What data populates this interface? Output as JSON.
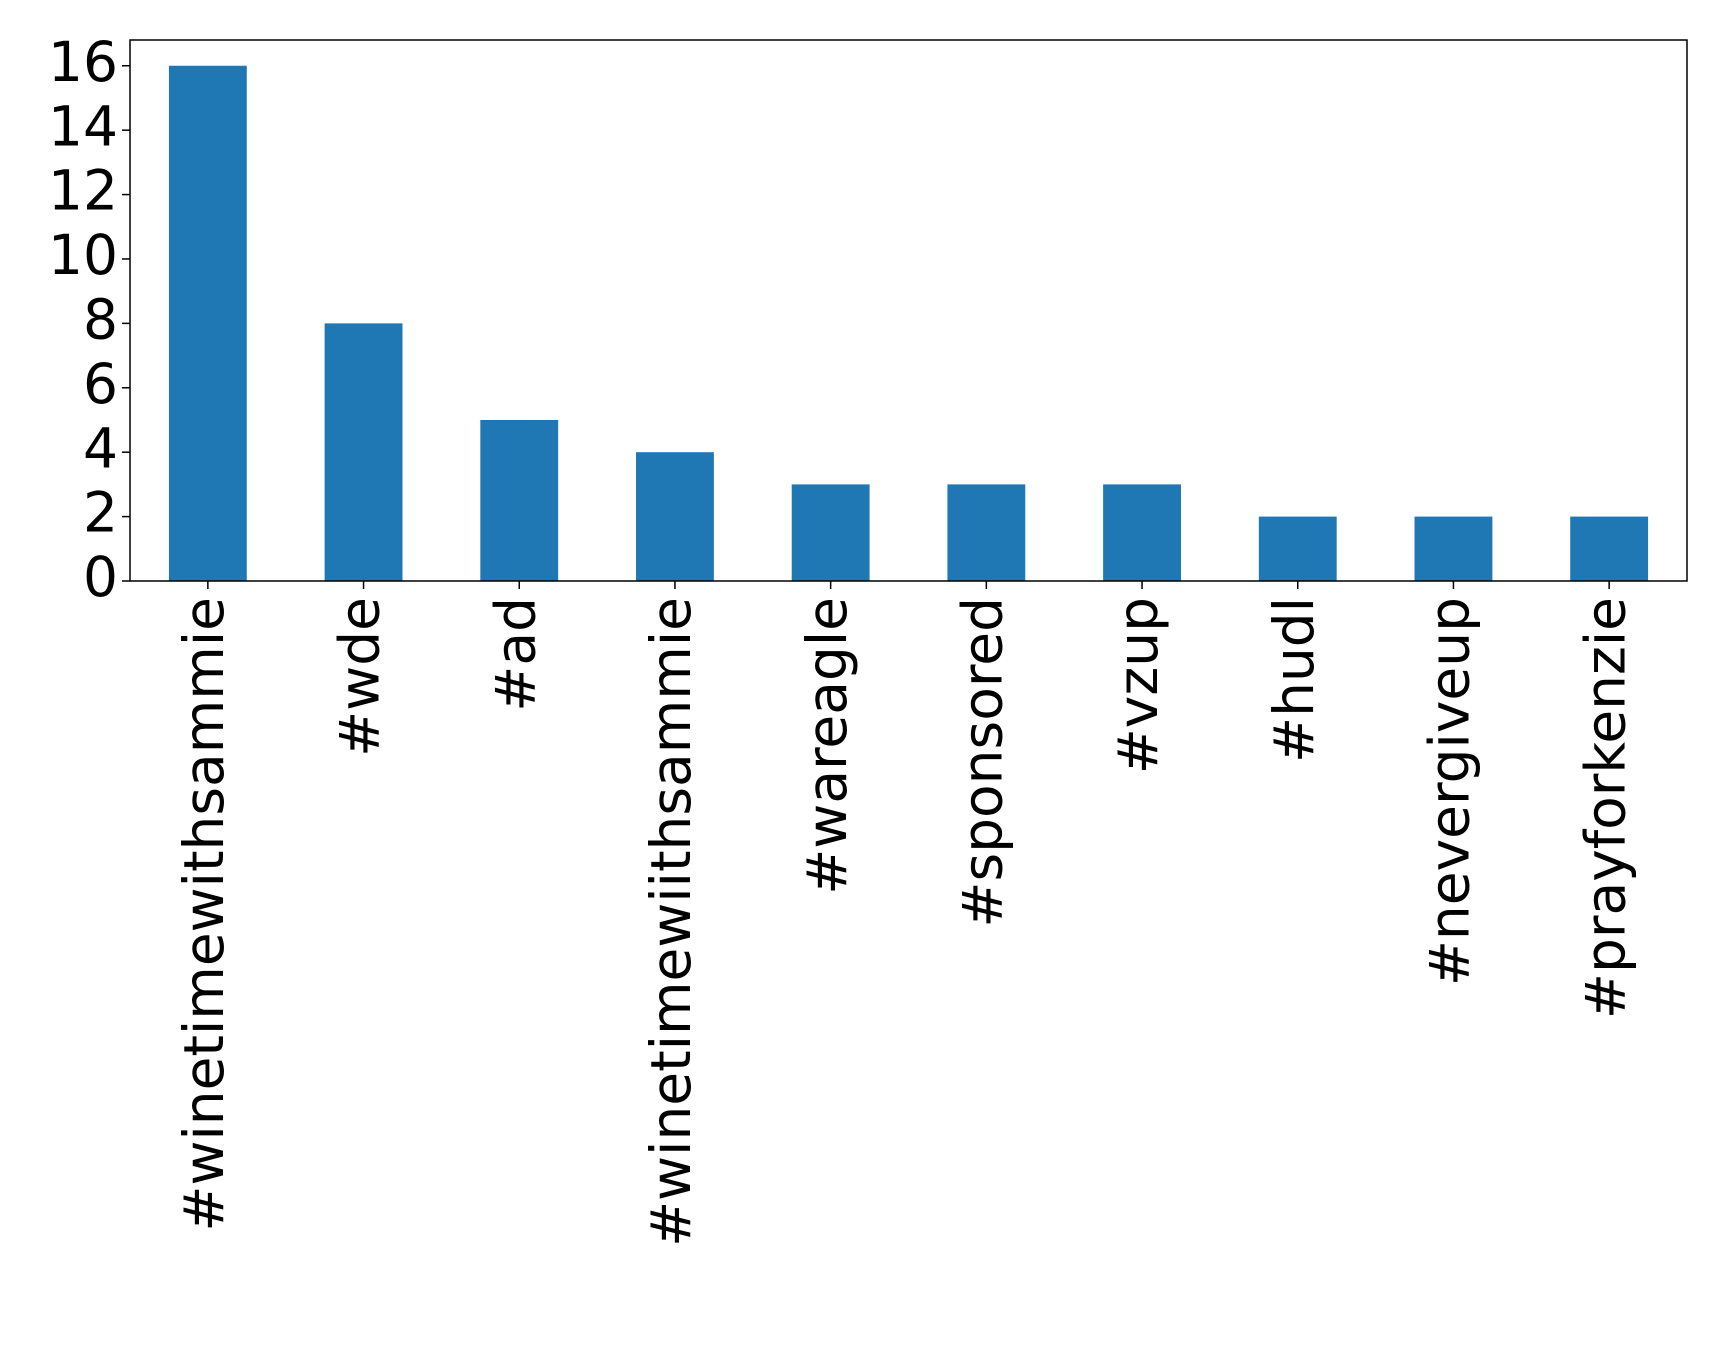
{
  "chart_data": {
    "type": "bar",
    "categories": [
      "#winetimewithsammie",
      "#wde",
      "#ad",
      "#winetimewiithsammie",
      "#wareagle",
      "#sponsored",
      "#vzup",
      "#hudl",
      "#nevergiveup",
      "#prayforkenzie"
    ],
    "values": [
      16,
      8,
      5,
      4,
      3,
      3,
      3,
      2,
      2,
      2
    ],
    "color": "#1f77b4",
    "ylim": [
      0,
      16.8
    ],
    "yticks": [
      0,
      2,
      4,
      6,
      8,
      10,
      12,
      14,
      16
    ],
    "grid": false
  }
}
